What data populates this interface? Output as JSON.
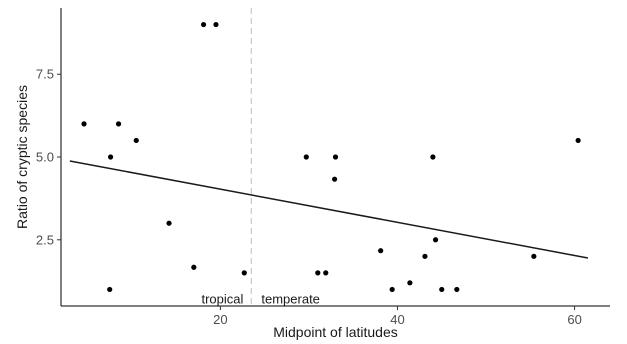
{
  "chart_data": {
    "type": "scatter",
    "xlabel": "Midpoint of latitudes",
    "ylabel": "Ratio of cryptic species",
    "xlim": [
      2,
      64
    ],
    "ylim": [
      0.5,
      9.5
    ],
    "x_ticks": [
      20,
      40,
      60
    ],
    "y_ticks": [
      2.5,
      5.0,
      7.5
    ],
    "x_tick_labels": [
      "20",
      "40",
      "60"
    ],
    "y_tick_labels": [
      "2.5",
      "5.0",
      "7.5"
    ],
    "grid": false,
    "points": [
      {
        "x": 4.6,
        "y": 6.0
      },
      {
        "x": 7.5,
        "y": 1.0
      },
      {
        "x": 7.6,
        "y": 5.0
      },
      {
        "x": 8.5,
        "y": 6.0
      },
      {
        "x": 10.5,
        "y": 5.5
      },
      {
        "x": 14.2,
        "y": 3.0
      },
      {
        "x": 17.0,
        "y": 1.67
      },
      {
        "x": 18.1,
        "y": 9.0
      },
      {
        "x": 19.5,
        "y": 9.0
      },
      {
        "x": 22.7,
        "y": 1.5
      },
      {
        "x": 29.7,
        "y": 5.0
      },
      {
        "x": 31.0,
        "y": 1.5
      },
      {
        "x": 31.9,
        "y": 1.5
      },
      {
        "x": 32.9,
        "y": 4.33
      },
      {
        "x": 33.0,
        "y": 5.0
      },
      {
        "x": 38.1,
        "y": 2.17
      },
      {
        "x": 39.4,
        "y": 1.0
      },
      {
        "x": 41.4,
        "y": 1.2
      },
      {
        "x": 43.1,
        "y": 2.0
      },
      {
        "x": 44.0,
        "y": 5.0
      },
      {
        "x": 44.3,
        "y": 2.5
      },
      {
        "x": 45.0,
        "y": 1.0
      },
      {
        "x": 46.7,
        "y": 1.0
      },
      {
        "x": 55.4,
        "y": 2.0
      },
      {
        "x": 60.4,
        "y": 5.5
      }
    ],
    "trend_line": {
      "x": [
        3.0,
        61.5
      ],
      "y": [
        4.88,
        1.95
      ]
    },
    "divider": {
      "x": 23.5
    },
    "annotations": [
      {
        "text": "tropical",
        "x": 23.5,
        "y": 0.7,
        "side": "left"
      },
      {
        "text": "temperate",
        "x": 23.5,
        "y": 0.7,
        "side": "right"
      }
    ],
    "colors": {
      "points": "#000000",
      "line": "#1a1a1a",
      "divider": "#cccccc",
      "axis": "#000000"
    }
  }
}
